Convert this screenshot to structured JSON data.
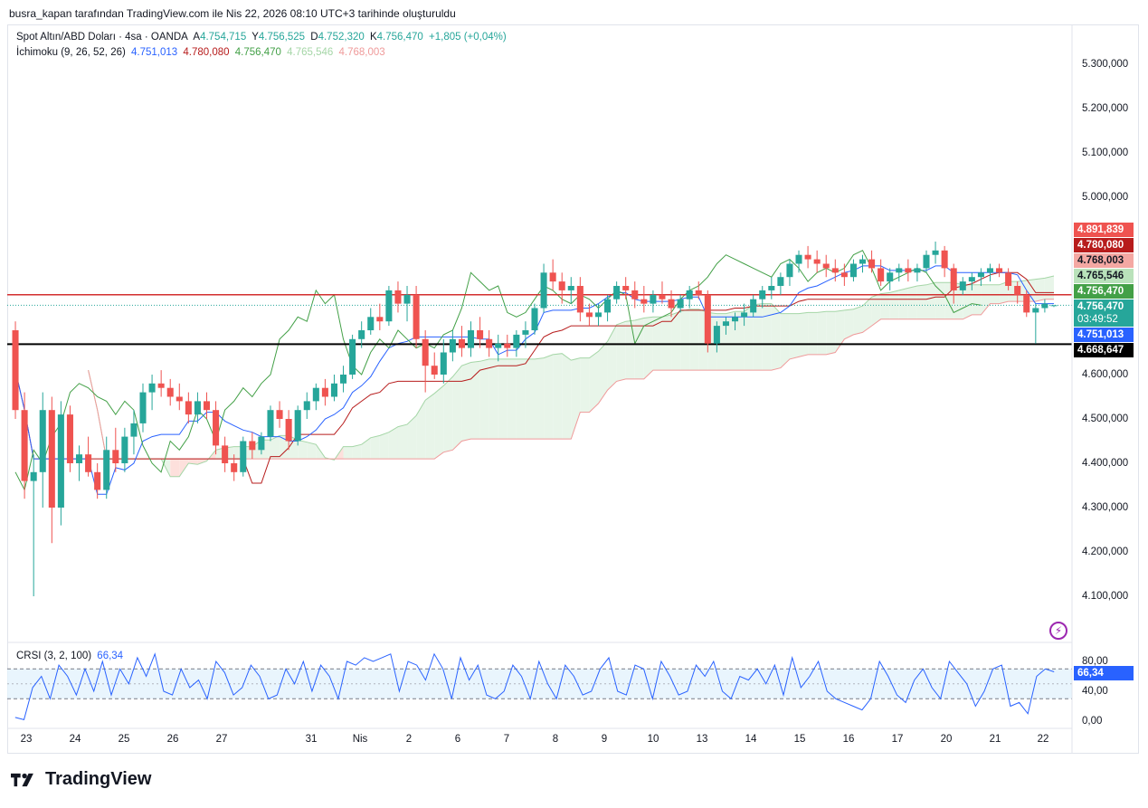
{
  "header": {
    "caption": "busra_kapan tarafından TradingView.com ile Nis 22, 2026 08:10 UTC+3 tarihinde oluşturuldu"
  },
  "legend": {
    "symbol": "Spot Altın/ABD Doları · 4sa · OANDA",
    "open_label": "A",
    "open": "4.754,715",
    "high_label": "Y",
    "high": "4.756,525",
    "low_label": "D",
    "low": "4.752,320",
    "close_label": "K",
    "close": "4.756,470",
    "change": "+1,805 (+0,04%)",
    "ichimoku_name": "İchimoku (9, 26, 52, 26)",
    "ichimoku_values": [
      "4.751,013",
      "4.780,080",
      "4.756,470",
      "4.765,546",
      "4.768,003"
    ],
    "crsi_name": "CRSI (3, 2, 100)",
    "crsi_value": "66,34"
  },
  "colors": {
    "up": "#26a69a",
    "down": "#ef5350",
    "tenkan": "#2962ff",
    "kijun": "#b71c1c",
    "chikou": "#43a047",
    "spanA": "#a5d6a7",
    "spanB": "#ef9a9a",
    "cloud_bull": "#e8f5e9",
    "cloud_bear": "#fde0dc",
    "resistance": "#d32f2f",
    "support": "#000000",
    "crsi": "#2962ff"
  },
  "price_axis": {
    "ticks": [
      "5.300,000",
      "5.200,000",
      "5.100,000",
      "5.000,000",
      "4.600,000",
      "4.500,000",
      "4.400,000",
      "4.300,000",
      "4.200,000",
      "4.100,000"
    ],
    "tags": [
      {
        "text": "4.891,839",
        "price": 4891.839,
        "color": "#ef5350"
      },
      {
        "text": "4.780,080",
        "price": 4780.08,
        "color": "#b71c1c"
      },
      {
        "text": "4.768,003",
        "price": 4768.003,
        "color": "#ef9a9a"
      },
      {
        "text": "4.765,546",
        "price": 4765.546,
        "color": "#a5d6a7"
      },
      {
        "text": "4.756,470",
        "price": 4756.47,
        "color": "#43a047"
      },
      {
        "text": "4.756,470",
        "price": 4744.0,
        "color": "#26a69a"
      },
      {
        "text": "03:49:52",
        "price": 4730.0,
        "color": "#26a69a"
      },
      {
        "text": "4.751,013",
        "price": 4695.0,
        "color": "#2962ff"
      },
      {
        "text": "4.668,647",
        "price": 4668.647,
        "color": "#000000"
      }
    ]
  },
  "crsi_axis": {
    "ticks": [
      "80,00",
      "40,00",
      "0,00"
    ],
    "tag": "66,34"
  },
  "time_axis": {
    "labels": [
      "23",
      "24",
      "25",
      "26",
      "27",
      "31",
      "Nis",
      "2",
      "6",
      "7",
      "8",
      "9",
      "10",
      "13",
      "14",
      "15",
      "16",
      "17",
      "20",
      "21",
      "22"
    ]
  },
  "chart_data": {
    "type": "candlestick",
    "title": "Spot Altın/ABD Doları · 4sa · OANDA",
    "ylim": [
      4050,
      5350
    ],
    "resistance_level": 4780.08,
    "support_level": 4668.647,
    "candles": [
      [
        4700,
        4720,
        4500,
        4520
      ],
      [
        4520,
        4560,
        4320,
        4360
      ],
      [
        4360,
        4420,
        4100,
        4380
      ],
      [
        4380,
        4560,
        4300,
        4520
      ],
      [
        4520,
        4550,
        4220,
        4300
      ],
      [
        4300,
        4540,
        4260,
        4510
      ],
      [
        4510,
        4530,
        4380,
        4400
      ],
      [
        4400,
        4440,
        4360,
        4420
      ],
      [
        4420,
        4460,
        4370,
        4380
      ],
      [
        4380,
        4400,
        4320,
        4340
      ],
      [
        4340,
        4460,
        4320,
        4430
      ],
      [
        4430,
        4480,
        4380,
        4400
      ],
      [
        4400,
        4480,
        4380,
        4460
      ],
      [
        4460,
        4520,
        4420,
        4490
      ],
      [
        4490,
        4580,
        4470,
        4560
      ],
      [
        4560,
        4600,
        4520,
        4580
      ],
      [
        4580,
        4610,
        4550,
        4570
      ],
      [
        4570,
        4590,
        4530,
        4550
      ],
      [
        4550,
        4580,
        4520,
        4540
      ],
      [
        4540,
        4560,
        4490,
        4510
      ],
      [
        4510,
        4560,
        4490,
        4540
      ],
      [
        4540,
        4560,
        4500,
        4520
      ],
      [
        4520,
        4540,
        4420,
        4440
      ],
      [
        4440,
        4460,
        4380,
        4400
      ],
      [
        4400,
        4420,
        4360,
        4380
      ],
      [
        4380,
        4460,
        4370,
        4450
      ],
      [
        4450,
        4470,
        4410,
        4430
      ],
      [
        4430,
        4470,
        4420,
        4460
      ],
      [
        4460,
        4530,
        4450,
        4520
      ],
      [
        4520,
        4540,
        4480,
        4500
      ],
      [
        4500,
        4520,
        4430,
        4450
      ],
      [
        4450,
        4530,
        4440,
        4520
      ],
      [
        4520,
        4560,
        4500,
        4540
      ],
      [
        4540,
        4580,
        4520,
        4570
      ],
      [
        4570,
        4590,
        4530,
        4550
      ],
      [
        4550,
        4600,
        4540,
        4580
      ],
      [
        4580,
        4620,
        4560,
        4600
      ],
      [
        4600,
        4690,
        4590,
        4680
      ],
      [
        4680,
        4720,
        4660,
        4700
      ],
      [
        4700,
        4750,
        4690,
        4730
      ],
      [
        4730,
        4760,
        4700,
        4720
      ],
      [
        4720,
        4800,
        4710,
        4790
      ],
      [
        4790,
        4810,
        4740,
        4760
      ],
      [
        4760,
        4800,
        4720,
        4780
      ],
      [
        4780,
        4800,
        4660,
        4680
      ],
      [
        4680,
        4700,
        4560,
        4620
      ],
      [
        4620,
        4650,
        4590,
        4600
      ],
      [
        4600,
        4680,
        4580,
        4650
      ],
      [
        4650,
        4700,
        4630,
        4680
      ],
      [
        4680,
        4710,
        4640,
        4660
      ],
      [
        4660,
        4720,
        4640,
        4700
      ],
      [
        4700,
        4730,
        4660,
        4680
      ],
      [
        4680,
        4700,
        4640,
        4660
      ],
      [
        4660,
        4690,
        4630,
        4670
      ],
      [
        4670,
        4690,
        4640,
        4660
      ],
      [
        4660,
        4700,
        4640,
        4690
      ],
      [
        4690,
        4720,
        4660,
        4700
      ],
      [
        4700,
        4760,
        4690,
        4750
      ],
      [
        4750,
        4850,
        4740,
        4830
      ],
      [
        4830,
        4860,
        4790,
        4810
      ],
      [
        4810,
        4830,
        4760,
        4790
      ],
      [
        4790,
        4820,
        4760,
        4800
      ],
      [
        4800,
        4820,
        4720,
        4740
      ],
      [
        4740,
        4760,
        4710,
        4730
      ],
      [
        4730,
        4760,
        4710,
        4740
      ],
      [
        4740,
        4780,
        4720,
        4770
      ],
      [
        4770,
        4810,
        4760,
        4800
      ],
      [
        4800,
        4820,
        4770,
        4790
      ],
      [
        4790,
        4810,
        4750,
        4770
      ],
      [
        4770,
        4800,
        4740,
        4760
      ],
      [
        4760,
        4790,
        4740,
        4780
      ],
      [
        4780,
        4810,
        4760,
        4770
      ],
      [
        4770,
        4790,
        4730,
        4750
      ],
      [
        4750,
        4780,
        4740,
        4770
      ],
      [
        4770,
        4800,
        4750,
        4790
      ],
      [
        4790,
        4810,
        4770,
        4780
      ],
      [
        4780,
        4790,
        4650,
        4670
      ],
      [
        4670,
        4720,
        4650,
        4710
      ],
      [
        4710,
        4730,
        4690,
        4720
      ],
      [
        4720,
        4740,
        4700,
        4730
      ],
      [
        4730,
        4760,
        4710,
        4740
      ],
      [
        4740,
        4780,
        4730,
        4770
      ],
      [
        4770,
        4800,
        4750,
        4790
      ],
      [
        4790,
        4820,
        4770,
        4800
      ],
      [
        4800,
        4830,
        4780,
        4820
      ],
      [
        4820,
        4860,
        4800,
        4850
      ],
      [
        4850,
        4880,
        4830,
        4870
      ],
      [
        4870,
        4890,
        4840,
        4860
      ],
      [
        4860,
        4880,
        4830,
        4850
      ],
      [
        4850,
        4870,
        4820,
        4840
      ],
      [
        4840,
        4860,
        4810,
        4830
      ],
      [
        4830,
        4850,
        4800,
        4820
      ],
      [
        4820,
        4860,
        4810,
        4850
      ],
      [
        4850,
        4870,
        4830,
        4860
      ],
      [
        4860,
        4880,
        4830,
        4840
      ],
      [
        4840,
        4860,
        4800,
        4810
      ],
      [
        4810,
        4840,
        4790,
        4830
      ],
      [
        4830,
        4850,
        4810,
        4840
      ],
      [
        4840,
        4860,
        4810,
        4830
      ],
      [
        4830,
        4850,
        4810,
        4840
      ],
      [
        4840,
        4880,
        4830,
        4870
      ],
      [
        4870,
        4900,
        4850,
        4880
      ],
      [
        4880,
        4890,
        4820,
        4840
      ],
      [
        4840,
        4850,
        4760,
        4790
      ],
      [
        4790,
        4820,
        4780,
        4810
      ],
      [
        4810,
        4830,
        4790,
        4820
      ],
      [
        4820,
        4840,
        4800,
        4830
      ],
      [
        4830,
        4850,
        4810,
        4840
      ],
      [
        4840,
        4850,
        4820,
        4830
      ],
      [
        4830,
        4840,
        4790,
        4800
      ],
      [
        4800,
        4810,
        4760,
        4780
      ],
      [
        4780,
        4790,
        4730,
        4740
      ],
      [
        4740,
        4760,
        4670,
        4750
      ],
      [
        4750,
        4770,
        4740,
        4760
      ],
      [
        4754.715,
        4756.525,
        4752.32,
        4756.47
      ]
    ]
  },
  "crsi_data": {
    "type": "line",
    "ylim": [
      -10,
      100
    ],
    "upper_band": 70,
    "lower_band": 30,
    "values": [
      5,
      2,
      45,
      60,
      30,
      75,
      60,
      35,
      70,
      40,
      80,
      35,
      70,
      50,
      85,
      60,
      90,
      40,
      35,
      70,
      45,
      55,
      30,
      80,
      65,
      35,
      45,
      75,
      60,
      30,
      35,
      70,
      50,
      80,
      40,
      75,
      60,
      30,
      80,
      75,
      85,
      80,
      85,
      90,
      40,
      80,
      75,
      55,
      90,
      70,
      30,
      85,
      55,
      75,
      35,
      30,
      40,
      75,
      60,
      30,
      80,
      50,
      30,
      75,
      60,
      35,
      40,
      70,
      85,
      40,
      35,
      75,
      70,
      30,
      80,
      60,
      35,
      40,
      75,
      60,
      80,
      40,
      30,
      60,
      55,
      70,
      50,
      75,
      35,
      85,
      45,
      60,
      80,
      40,
      30,
      25,
      20,
      15,
      30,
      80,
      60,
      35,
      25,
      55,
      70,
      45,
      30,
      80,
      65,
      50,
      20,
      40,
      70,
      75,
      20,
      25,
      10,
      60,
      70,
      66
    ]
  }
}
